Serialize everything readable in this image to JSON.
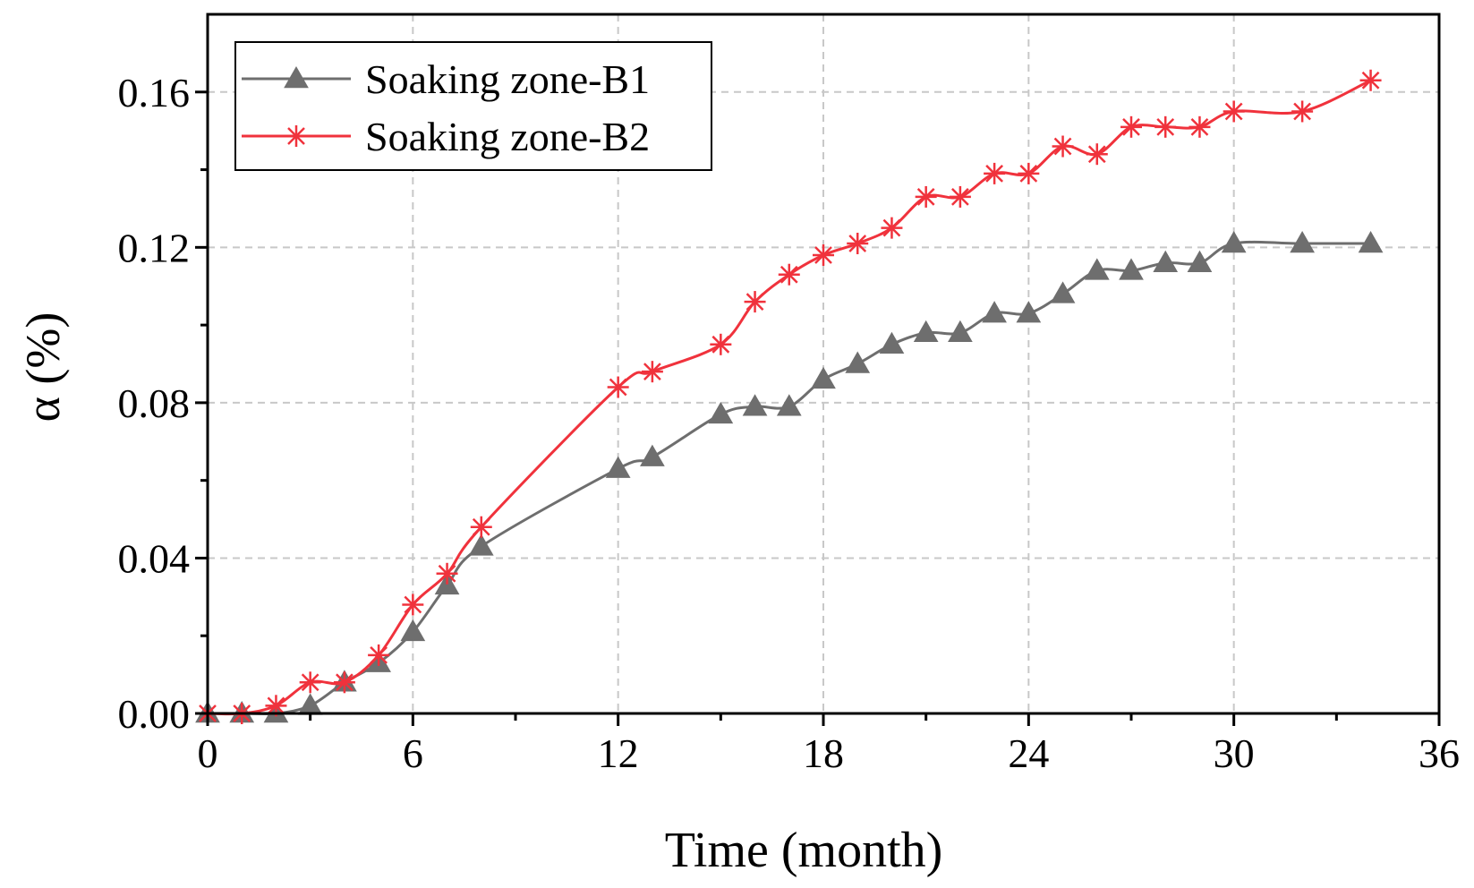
{
  "chart_data": {
    "type": "line",
    "title": "",
    "xlabel": "Time (month)",
    "ylabel": "α (%)",
    "xlim": [
      0,
      36
    ],
    "ylim": [
      0,
      0.18
    ],
    "xticks": [
      0,
      6,
      12,
      18,
      24,
      30,
      36
    ],
    "xtick_labels": [
      "0",
      "6",
      "12",
      "18",
      "24",
      "30",
      "36"
    ],
    "yticks": [
      0,
      0.04,
      0.08,
      0.12,
      0.16
    ],
    "ytick_labels": [
      "0.00",
      "0.04",
      "0.08",
      "0.12",
      "0.16"
    ],
    "grid": true,
    "legend_position": "top-left",
    "series": [
      {
        "name": "Soaking zone-B1",
        "color": "#6e6e6e",
        "marker": "triangle",
        "x": [
          0,
          1,
          2,
          3,
          4,
          5,
          6,
          7,
          8,
          12,
          13,
          15,
          16,
          17,
          18,
          19,
          20,
          21,
          22,
          23,
          24,
          25,
          26,
          27,
          28,
          29,
          30,
          32,
          34
        ],
        "values": [
          0,
          0,
          0,
          0.002,
          0.008,
          0.013,
          0.021,
          0.033,
          0.043,
          0.063,
          0.066,
          0.077,
          0.079,
          0.079,
          0.086,
          0.09,
          0.095,
          0.098,
          0.098,
          0.103,
          0.103,
          0.108,
          0.114,
          0.114,
          0.116,
          0.116,
          0.121,
          0.121,
          0.121
        ]
      },
      {
        "name": "Soaking zone-B2",
        "color": "#f0323c",
        "marker": "asterisk",
        "x": [
          0,
          1,
          2,
          3,
          4,
          5,
          6,
          7,
          8,
          12,
          13,
          15,
          16,
          17,
          18,
          19,
          20,
          21,
          22,
          23,
          24,
          25,
          26,
          27,
          28,
          29,
          30,
          32,
          34
        ],
        "values": [
          0,
          0,
          0.002,
          0.008,
          0.008,
          0.015,
          0.028,
          0.036,
          0.048,
          0.084,
          0.088,
          0.095,
          0.106,
          0.113,
          0.118,
          0.121,
          0.125,
          0.133,
          0.133,
          0.139,
          0.139,
          0.146,
          0.144,
          0.151,
          0.151,
          0.151,
          0.155,
          0.155,
          0.163
        ]
      }
    ]
  }
}
